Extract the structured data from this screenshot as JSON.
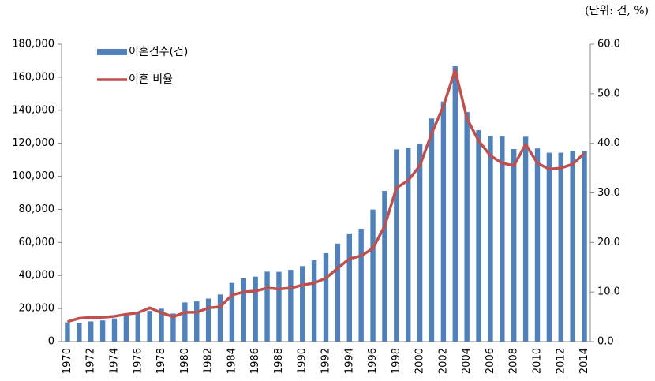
{
  "chart_data": {
    "type": "bar_line",
    "annotation": "(단위: 건, %)",
    "categories": [
      "1970",
      null,
      "1972",
      null,
      "1974",
      null,
      "1976",
      null,
      "1978",
      null,
      "1980",
      null,
      "1982",
      null,
      "1984",
      null,
      "1986",
      null,
      "1988",
      null,
      "1990",
      null,
      "1992",
      null,
      "1994",
      null,
      "1996",
      null,
      "1998",
      null,
      "2000",
      null,
      "2002",
      null,
      "2004",
      null,
      "2006",
      null,
      "2008",
      null,
      "2010",
      null,
      "2012",
      null,
      "2014"
    ],
    "series": [
      {
        "name": "이혼건수(건)",
        "color": "#4f81bd",
        "kind": "bar",
        "values": [
          11600,
          11400,
          12200,
          12800,
          14000,
          16500,
          17100,
          18500,
          19900,
          17000,
          23700,
          24300,
          26000,
          28500,
          35500,
          38200,
          39300,
          42300,
          42200,
          43400,
          45700,
          49200,
          53500,
          59300,
          65000,
          68300,
          79900,
          91200,
          116300,
          117400,
          119500,
          135000,
          145300,
          166600,
          138900,
          128000,
          124500,
          124100,
          116500,
          124000,
          116900,
          114300,
          114300,
          115300,
          115500
        ]
      },
      {
        "name": "이혼 비율",
        "color": "#c0504d",
        "kind": "line",
        "axis": "y2",
        "values": [
          4.0,
          4.7,
          4.9,
          4.9,
          5.1,
          5.5,
          5.8,
          6.8,
          5.8,
          5.0,
          5.9,
          5.9,
          6.8,
          7.0,
          9.4,
          10.0,
          10.2,
          10.8,
          10.6,
          10.8,
          11.4,
          11.8,
          12.8,
          14.8,
          16.7,
          17.3,
          18.8,
          23.3,
          31.0,
          32.5,
          35.5,
          42.0,
          47.5,
          54.8,
          45.0,
          40.5,
          37.5,
          36.0,
          35.5,
          39.8,
          36.0,
          34.8,
          35.0,
          35.8,
          38.0
        ]
      }
    ],
    "ylim": [
      0,
      180000
    ],
    "yticks": [
      0,
      {
        "value": 20000,
        "label": "20,000"
      },
      {
        "value": 40000,
        "label": "40,000"
      },
      {
        "value": 60000,
        "label": "60,000"
      },
      {
        "value": 80000,
        "label": "80,000"
      },
      {
        "value": 100000,
        "label": "100,000"
      },
      {
        "value": 120000,
        "label": "120,000"
      },
      {
        "value": 140000,
        "label": "140,000"
      },
      {
        "value": 160000,
        "label": "160,000"
      },
      {
        "value": 180000,
        "label": "180,000"
      }
    ],
    "y2lim": [
      0,
      60
    ],
    "y2ticks": [
      {
        "value": 0,
        "label": "0.0"
      },
      {
        "value": 10,
        "label": "10.0"
      },
      {
        "value": 20,
        "label": "20.0"
      },
      {
        "value": 30,
        "label": "30.0"
      },
      {
        "value": 40,
        "label": "40.0"
      },
      {
        "value": 50,
        "label": "50.0"
      },
      {
        "value": 60,
        "label": "60.0"
      }
    ],
    "legend": "upper left"
  }
}
